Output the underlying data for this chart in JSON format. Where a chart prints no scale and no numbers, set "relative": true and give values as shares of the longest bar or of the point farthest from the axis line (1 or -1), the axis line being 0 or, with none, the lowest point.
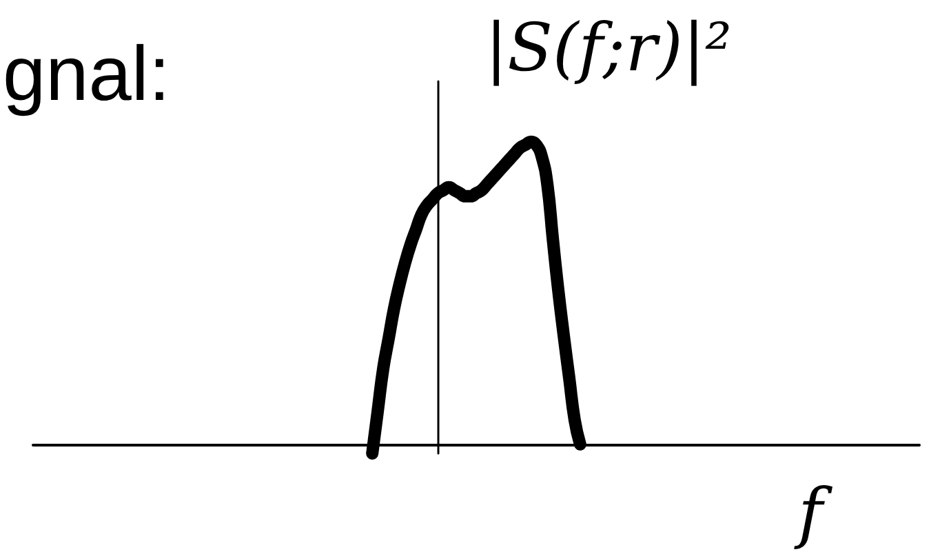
{
  "chart_data": {
    "type": "line",
    "title": "gnal:",
    "xlabel": "f",
    "ylabel": "|S(f;r)|²",
    "relative": true,
    "marker": "none",
    "line_style": "solid",
    "categories": [
      null,
      null,
      null,
      null,
      null,
      null,
      null,
      null,
      null,
      null,
      null,
      null,
      null,
      null,
      null,
      null,
      null,
      null,
      null,
      null,
      null,
      null,
      null,
      null,
      null,
      null,
      null,
      null,
      null,
      null,
      null,
      null,
      null,
      null,
      null,
      null,
      null,
      null,
      null,
      null,
      null,
      null,
      null,
      null,
      null,
      null,
      null,
      null,
      null,
      null,
      null,
      null,
      null,
      null,
      null,
      null,
      null,
      null,
      null,
      null,
      null,
      null,
      null,
      null,
      null,
      null,
      null,
      null,
      null,
      null,
      null,
      null,
      null,
      null,
      null,
      null,
      null,
      null,
      null,
      null,
      null,
      null,
      null,
      null,
      null,
      null,
      null,
      null,
      null,
      null,
      null,
      null,
      null,
      null,
      null,
      null,
      null,
      null,
      null,
      null,
      null,
      null,
      null,
      null,
      null,
      null,
      null,
      null,
      null,
      null,
      null,
      null,
      null,
      null,
      null,
      null,
      null,
      null,
      null,
      null,
      null,
      null,
      null,
      null,
      null,
      null,
      null,
      null,
      null,
      null,
      null,
      null,
      null,
      null,
      null,
      null,
      null,
      null,
      null,
      null,
      null,
      null,
      null,
      null,
      null,
      null,
      null,
      null,
      null,
      null,
      null,
      null,
      null,
      null,
      null,
      null,
      null,
      null,
      null,
      null,
      null,
      null,
      null
    ],
    "series": [
      {
        "color": "#000000",
        "values": [
          null,
          null,
          null,
          null,
          null,
          null,
          null,
          null,
          null,
          null,
          null,
          null,
          null,
          null,
          null,
          null,
          null,
          null,
          null,
          null,
          null,
          null,
          null,
          null,
          null,
          null,
          null,
          null,
          null,
          null,
          null,
          null,
          null,
          null,
          null,
          null,
          null,
          null,
          null,
          null,
          null,
          null,
          null,
          null,
          null,
          null,
          null,
          null,
          null,
          null,
          null,
          null,
          null,
          null,
          null,
          null,
          null,
          null,
          null,
          null,
          null,
          null,
          -0.03,
          0.11,
          0.25,
          0.35,
          0.45,
          0.53,
          0.6,
          0.66,
          0.71,
          0.76,
          0.79,
          0.81,
          0.83,
          0.84,
          0.85,
          0.84,
          0.83,
          0.82,
          0.82,
          0.83,
          0.84,
          0.86,
          0.88,
          0.9,
          0.92,
          0.94,
          0.96,
          0.98,
          0.99,
          1,
          0.99,
          0.95,
          0.86,
          0.68,
          0.51,
          0.36,
          0.22,
          0.08,
          0,
          null,
          null,
          null,
          null,
          null,
          null,
          null,
          null,
          null,
          null,
          null,
          null,
          null,
          null,
          null,
          null,
          null,
          null,
          null,
          null,
          null,
          null,
          null,
          null,
          null,
          null,
          null,
          null,
          null,
          null,
          null,
          null,
          null,
          null,
          null,
          null,
          null,
          null,
          null,
          null,
          null,
          null,
          null,
          null,
          null,
          null,
          null,
          null,
          null,
          null,
          null,
          null,
          null,
          null,
          null,
          null,
          null,
          null,
          null,
          null,
          null,
          null
        ]
      }
    ]
  }
}
